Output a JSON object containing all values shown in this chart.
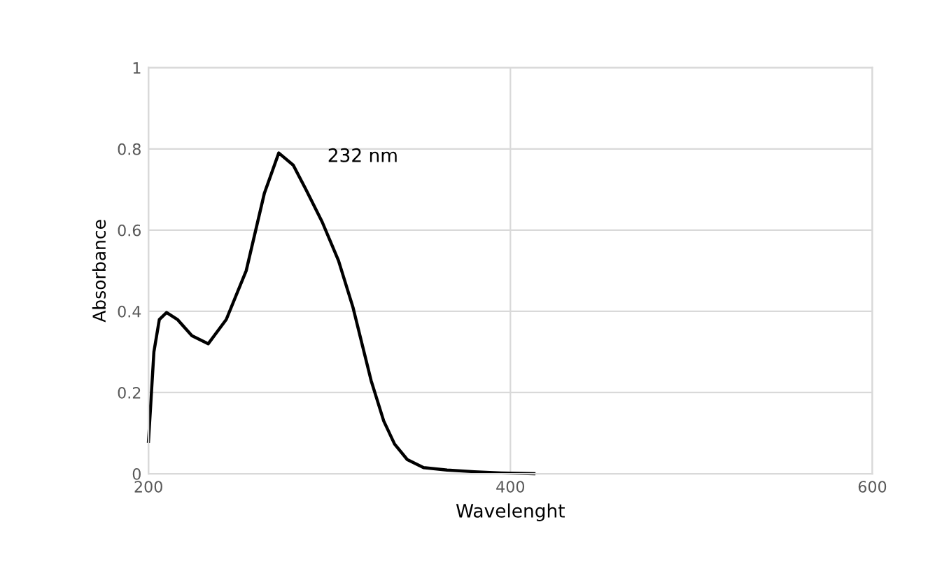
{
  "chart_data": {
    "type": "line",
    "xlabel": "Wavelenght",
    "ylabel": "Absorbance",
    "x": [
      200,
      203,
      206,
      210,
      216,
      224,
      233,
      243,
      254,
      264,
      272,
      280,
      287,
      296,
      305,
      313,
      323,
      330,
      336,
      343,
      352,
      365,
      380,
      395,
      413
    ],
    "series": [
      {
        "color": "#000000",
        "values": [
          0.08,
          0.3,
          0.38,
          0.397,
          0.38,
          0.34,
          0.32,
          0.38,
          0.5,
          0.69,
          0.79,
          0.76,
          0.7,
          0.62,
          0.525,
          0.41,
          0.23,
          0.13,
          0.073,
          0.035,
          0.015,
          0.009,
          0.005,
          0.002,
          0.0
        ]
      }
    ],
    "xlim": [
      200,
      600
    ],
    "xticks": [
      200,
      400,
      600
    ],
    "ylim": [
      0,
      1
    ],
    "yticks": [
      0,
      0.2,
      0.4,
      0.6,
      0.8,
      1
    ],
    "grid": true,
    "marker": "none",
    "line_style": "solid",
    "annotations": [
      {
        "text": "232 nm",
        "x": 272,
        "y": 0.79
      }
    ]
  }
}
